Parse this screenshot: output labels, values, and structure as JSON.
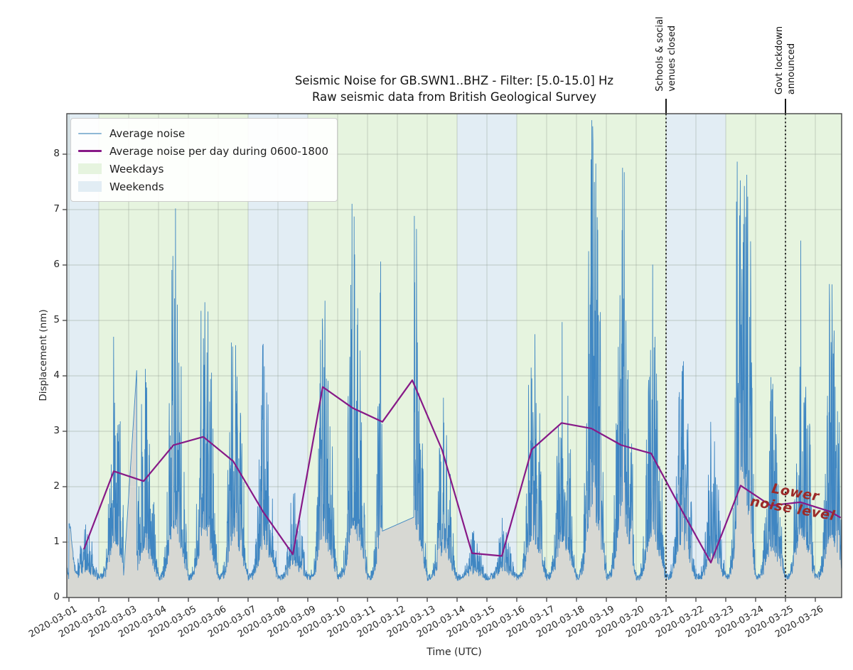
{
  "figure": {
    "title_line1": "Seismic Noise for GB.SWN1..BHZ - Filter: [5.0-15.0] Hz",
    "title_line2": "Raw seismic data from British Geological Survey",
    "xlabel": "Time (UTC)",
    "ylabel": "Displacement (nm)"
  },
  "legend": {
    "position": "upper left",
    "items": [
      {
        "label": "Average noise",
        "type": "line",
        "color": "#8fb8d6",
        "thickness": 2
      },
      {
        "label": "Average noise per day during 0600-1800",
        "type": "line",
        "color": "#871987",
        "thickness": 3
      },
      {
        "label": "Weekdays",
        "type": "patch",
        "color": "#e6f4df"
      },
      {
        "label": "Weekends",
        "type": "patch",
        "color": "#e2edf4"
      }
    ]
  },
  "annotations": {
    "events": [
      {
        "line1": "Schools & social",
        "line2": "venues closed",
        "x_day": 20,
        "date": "2020-03-21"
      },
      {
        "line1": "Govt lockdown",
        "line2": "announced",
        "x_day": 24,
        "date": "2020-03-25"
      }
    ],
    "lower_noise": {
      "line1": "Lower",
      "line2": "noise level",
      "color": "#9c2a28"
    }
  },
  "chart_data": {
    "type": "line",
    "title": "Seismic Noise for GB.SWN1..BHZ - Filter: [5.0-15.0] Hz",
    "subtitle": "Raw seismic data from British Geological Survey",
    "xlabel": "Time (UTC)",
    "ylabel": "Displacement (nm)",
    "grid": true,
    "ylim": [
      0,
      8.73
    ],
    "x_range_days": [
      -0.07,
      25.88
    ],
    "y_ticks": [
      0,
      1,
      2,
      3,
      4,
      5,
      6,
      7,
      8
    ],
    "x_tick_labels": [
      "2020-03-01",
      "2020-03-02",
      "2020-03-03",
      "2020-03-04",
      "2020-03-05",
      "2020-03-06",
      "2020-03-07",
      "2020-03-08",
      "2020-03-09",
      "2020-03-10",
      "2020-03-11",
      "2020-03-12",
      "2020-03-13",
      "2020-03-14",
      "2020-03-15",
      "2020-03-16",
      "2020-03-17",
      "2020-03-18",
      "2020-03-19",
      "2020-03-20",
      "2020-03-21",
      "2020-03-22",
      "2020-03-23",
      "2020-03-24",
      "2020-03-25",
      "2020-03-26"
    ],
    "weekend_day_indices": [
      0,
      6,
      7,
      13,
      14,
      20,
      21
    ],
    "daily_avg_0600_1800": [
      0.87,
      2.28,
      2.1,
      2.75,
      2.9,
      2.46,
      1.55,
      0.78,
      3.8,
      3.42,
      3.17,
      3.92,
      2.66,
      0.8,
      0.75,
      2.67,
      3.15,
      3.05,
      2.75,
      2.6,
      1.6,
      0.63,
      2.02,
      1.66,
      1.72,
      1.55
    ],
    "avg_line_tail": {
      "x_day": 25.85,
      "value": 1.44
    },
    "daily_peak_noise": [
      1.45,
      4.8,
      4.25,
      7.15,
      5.45,
      4.65,
      4.6,
      2.0,
      5.4,
      7.25,
      6.15,
      6.95,
      3.75,
      1.3,
      1.5,
      4.9,
      5.0,
      8.72,
      7.8,
      6.05,
      4.35,
      3.2,
      8.0,
      4.05,
      6.5,
      5.75
    ],
    "night_noise_floor": 0.32,
    "data_gaps": [
      {
        "from": 1.83,
        "to": 2.27,
        "v_from": 0.4,
        "v_to": 4.1
      },
      {
        "from": 10.5,
        "to": 11.55,
        "v_from": 1.2,
        "v_to": 1.45
      }
    ],
    "colors": {
      "noise_line": "#3f86c2",
      "noise_fill": "#d7d8d3",
      "daily_avg_line": "#871987",
      "weekday_band": "#e6f4df",
      "weekend_band": "#e2edf4",
      "event_line": "#1a1a1a",
      "grid": "#8d988d",
      "spine": "#454545"
    }
  }
}
